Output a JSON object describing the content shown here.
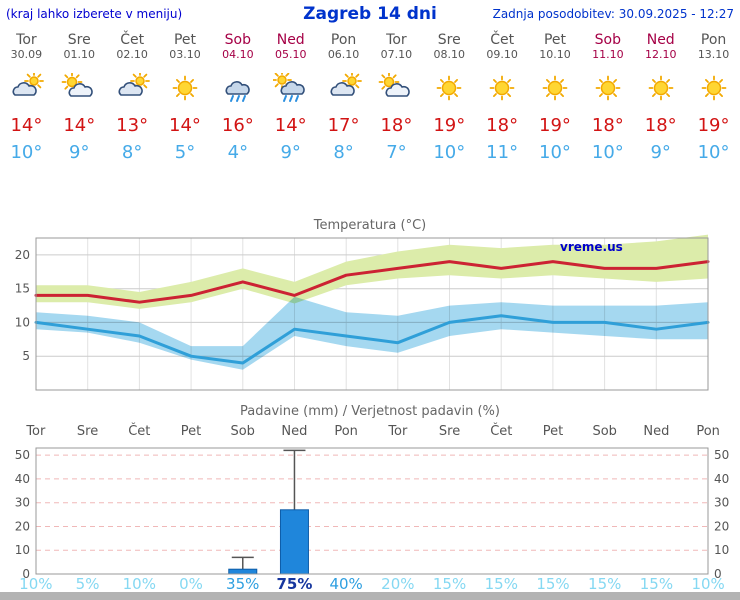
{
  "header": {
    "note": "(kraj lahko izberete v meniju)",
    "title": "Zagreb 14 dni",
    "updated": "Zadnja posodobitev: 30.09.2025 - 12:27"
  },
  "watermark": "vreme.us",
  "days": [
    {
      "name": "Tor",
      "date": "30.09",
      "icon": "mostly-cloudy",
      "tmax": 14,
      "tmin": 10,
      "precip_prob_percent": 10
    },
    {
      "name": "Sre",
      "date": "01.10",
      "icon": "partly-cloudy",
      "tmax": 14,
      "tmin": 9,
      "precip_prob_percent": 5
    },
    {
      "name": "Čet",
      "date": "02.10",
      "icon": "mostly-cloudy",
      "tmax": 13,
      "tmin": 8,
      "precip_prob_percent": 10
    },
    {
      "name": "Pet",
      "date": "03.10",
      "icon": "sunny",
      "tmax": 14,
      "tmin": 5,
      "precip_prob_percent": 0
    },
    {
      "name": "Sob",
      "date": "04.10",
      "icon": "rain",
      "tmax": 16,
      "tmin": 4,
      "precip_prob_percent": 35
    },
    {
      "name": "Ned",
      "date": "05.10",
      "icon": "rain-sun",
      "tmax": 14,
      "tmin": 9,
      "precip_prob_percent": 75
    },
    {
      "name": "Pon",
      "date": "06.10",
      "icon": "mostly-cloudy",
      "tmax": 17,
      "tmin": 8,
      "precip_prob_percent": 40
    },
    {
      "name": "Tor",
      "date": "07.10",
      "icon": "partly-cloudy",
      "tmax": 18,
      "tmin": 7,
      "precip_prob_percent": 20
    },
    {
      "name": "Sre",
      "date": "08.10",
      "icon": "sunny",
      "tmax": 19,
      "tmin": 10,
      "precip_prob_percent": 15
    },
    {
      "name": "Čet",
      "date": "09.10",
      "icon": "sunny",
      "tmax": 18,
      "tmin": 11,
      "precip_prob_percent": 15
    },
    {
      "name": "Pet",
      "date": "10.10",
      "icon": "sunny",
      "tmax": 19,
      "tmin": 10,
      "precip_prob_percent": 15
    },
    {
      "name": "Sob",
      "date": "11.10",
      "icon": "sunny",
      "tmax": 18,
      "tmin": 10,
      "precip_prob_percent": 15
    },
    {
      "name": "Ned",
      "date": "12.10",
      "icon": "sunny",
      "tmax": 18,
      "tmin": 9,
      "precip_prob_percent": 15
    },
    {
      "name": "Pon",
      "date": "13.10",
      "icon": "sunny",
      "tmax": 19,
      "tmin": 10,
      "precip_prob_percent": 10
    }
  ],
  "chart_data": [
    {
      "type": "line",
      "title": "Temperatura (°C)",
      "categories": [
        "Tor 30.09",
        "Sre 01.10",
        "Čet 02.10",
        "Pet 03.10",
        "Sob 04.10",
        "Ned 05.10",
        "Pon 06.10",
        "Tor 07.10",
        "Sre 08.10",
        "Čet 09.10",
        "Pet 10.10",
        "Sob 11.10",
        "Ned 12.10",
        "Pon 13.10"
      ],
      "series": [
        {
          "name": "tmax",
          "color": "#cc2233",
          "values": [
            14,
            14,
            13,
            14,
            16,
            14,
            17,
            18,
            19,
            18,
            19,
            18,
            18,
            19
          ]
        },
        {
          "name": "tmin",
          "color": "#2f9fd8",
          "values": [
            10,
            9,
            8,
            5,
            4,
            9,
            8,
            7,
            10,
            11,
            10,
            10,
            9,
            10
          ]
        },
        {
          "name": "tmax_band_high",
          "values": [
            15.5,
            15.5,
            14.5,
            16,
            18,
            16,
            19,
            20.5,
            21.5,
            21,
            21.5,
            21.5,
            22,
            23
          ]
        },
        {
          "name": "tmax_band_low",
          "values": [
            13,
            13,
            12,
            13,
            15,
            12.8,
            15.5,
            16.5,
            17,
            16.5,
            17,
            16.5,
            16,
            16.5
          ]
        },
        {
          "name": "tmin_band_high",
          "values": [
            11.5,
            11,
            10,
            6.5,
            6.5,
            13.8,
            11.5,
            11,
            12.5,
            13,
            12.5,
            12.5,
            12.5,
            13
          ]
        },
        {
          "name": "tmin_band_low",
          "values": [
            9,
            8.5,
            7,
            4.5,
            3,
            8,
            6.5,
            5.5,
            8,
            9,
            8.5,
            8,
            7.5,
            7.5
          ]
        }
      ],
      "ylim": [
        0,
        22.5
      ],
      "yticks": [
        5,
        10,
        15,
        20
      ],
      "grid": true,
      "legend_position": "none"
    },
    {
      "type": "bar",
      "title": "Padavine (mm) / Verjetnost padavin (%)",
      "categories": [
        "Tor",
        "Sre",
        "Čet",
        "Pet",
        "Sob",
        "Ned",
        "Pon",
        "Tor",
        "Sre",
        "Čet",
        "Pet",
        "Sob",
        "Ned",
        "Pon"
      ],
      "values": [
        0,
        0,
        0,
        0,
        2,
        27,
        0,
        0,
        0,
        0,
        0,
        0,
        0,
        0
      ],
      "whisker_max": [
        null,
        null,
        null,
        null,
        7,
        52,
        null,
        null,
        null,
        null,
        null,
        null,
        null,
        null
      ],
      "probabilities_percent": [
        10,
        5,
        10,
        0,
        35,
        75,
        40,
        20,
        15,
        15,
        15,
        15,
        15,
        10
      ],
      "ylim": [
        0,
        53
      ],
      "yticks": [
        0,
        10,
        20,
        30,
        40,
        50
      ],
      "grid": true
    }
  ],
  "colors": {
    "tmax_text": "#d21414",
    "tmin_text": "#45aae8",
    "weekend_text": "#a50046",
    "bar_fill": "#1f86db",
    "band_warm": "#dcecaa",
    "band_cold": "#a5d8f0",
    "header_blue": "#0033cc"
  }
}
